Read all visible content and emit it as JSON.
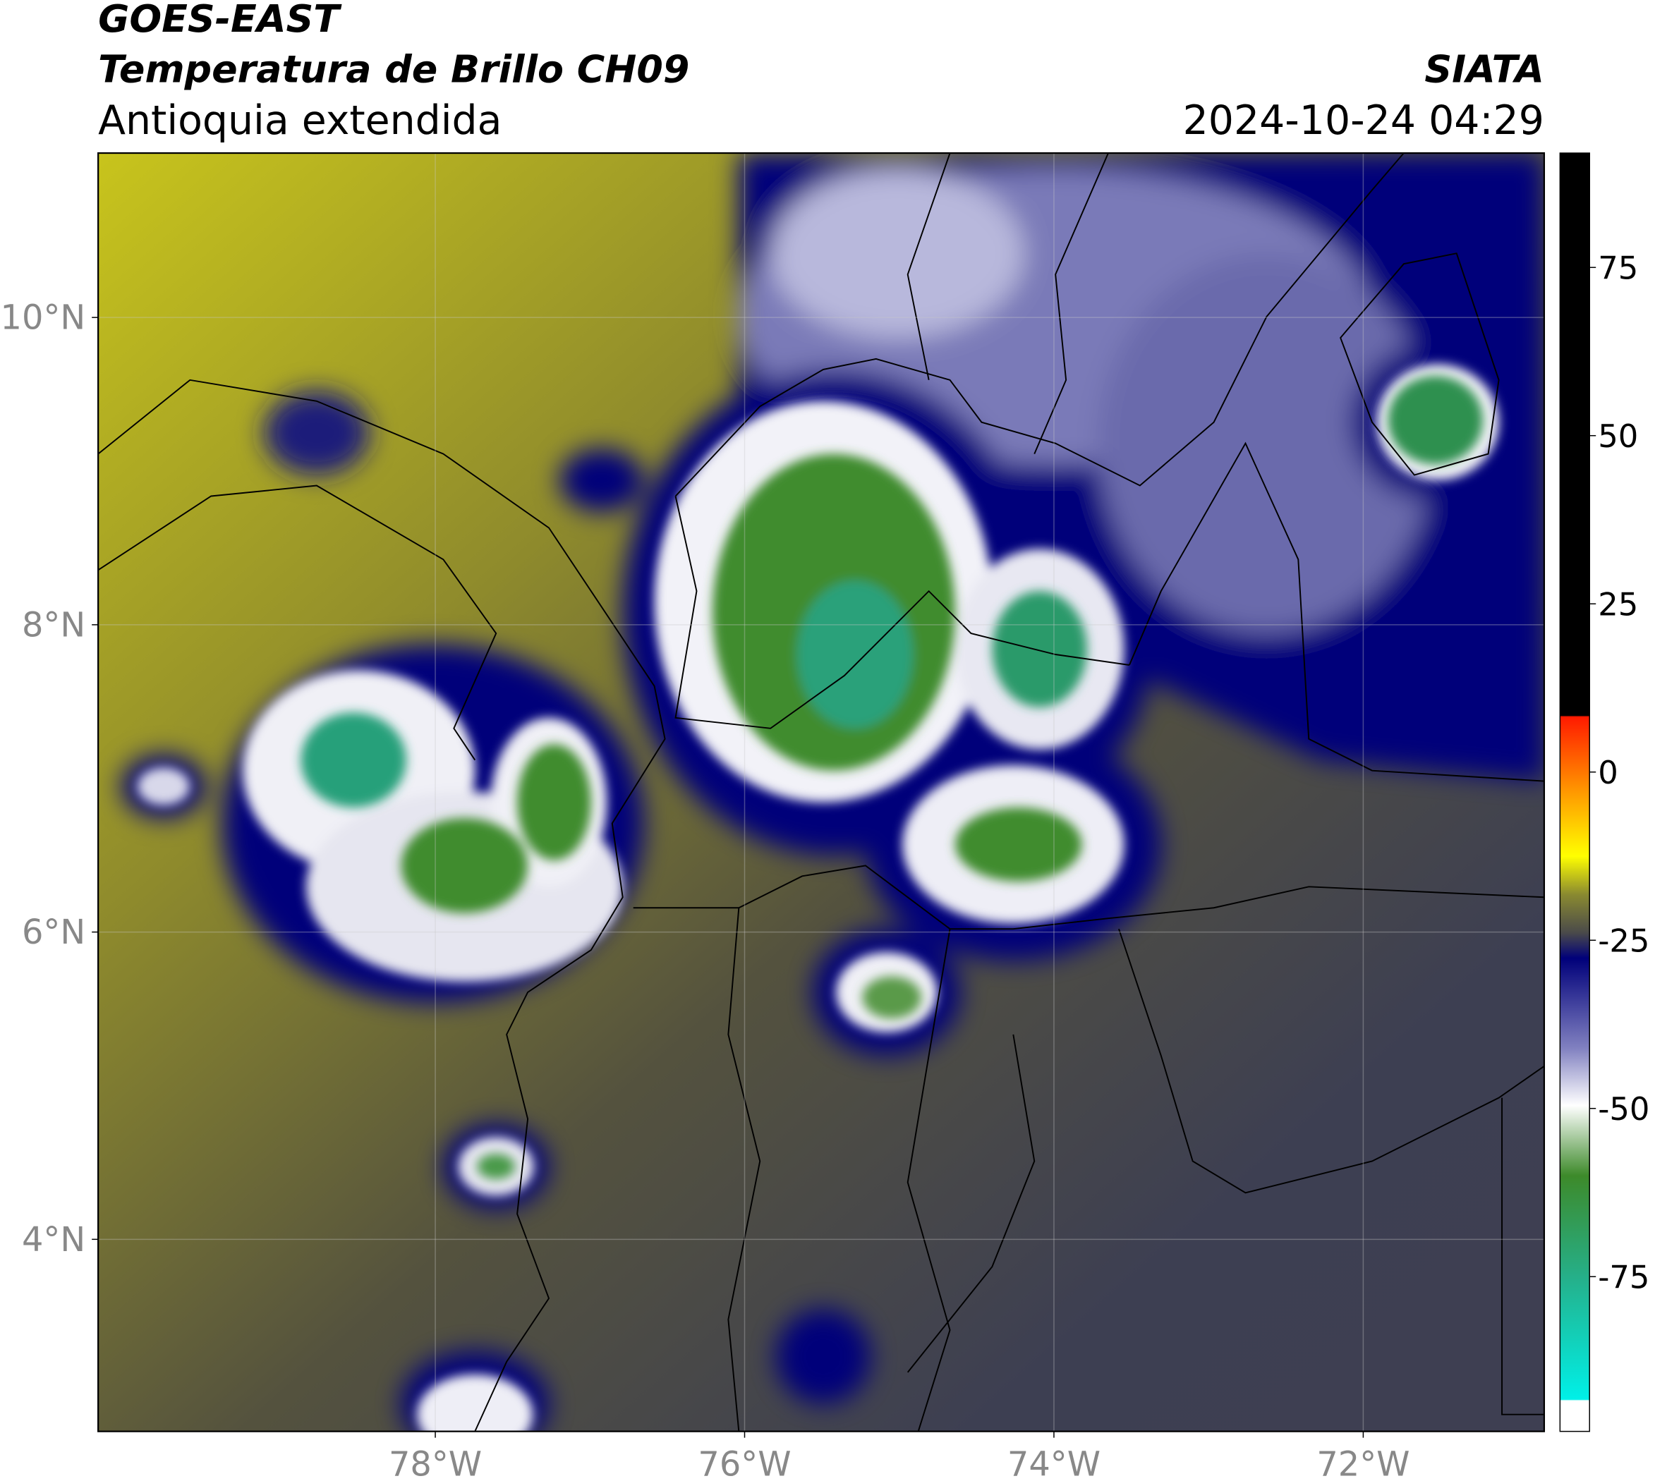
{
  "header": {
    "title": "GOES-EAST",
    "subtitle": "Temperatura de Brillo CH09",
    "region": "Antioquia extendida",
    "source": "SIATA",
    "datetime": "2024-10-24 04:29"
  },
  "map": {
    "lon_range": [
      -80.18,
      -70.83
    ],
    "lat_range": [
      2.75,
      11.07
    ],
    "lon_ticks": [
      {
        "value": -78,
        "label": "78°W"
      },
      {
        "value": -76,
        "label": "76°W"
      },
      {
        "value": -74,
        "label": "74°W"
      },
      {
        "value": -72,
        "label": "72°W"
      }
    ],
    "lat_ticks": [
      {
        "value": 10,
        "label": "10°N"
      },
      {
        "value": 8,
        "label": "8°N"
      },
      {
        "value": 6,
        "label": "6°N"
      },
      {
        "value": 4,
        "label": "4°N"
      }
    ],
    "grid": true
  },
  "colorbar": {
    "range": [
      -98,
      92
    ],
    "ticks": [
      75,
      50,
      25,
      0,
      -25,
      -50,
      -75
    ]
  }
}
